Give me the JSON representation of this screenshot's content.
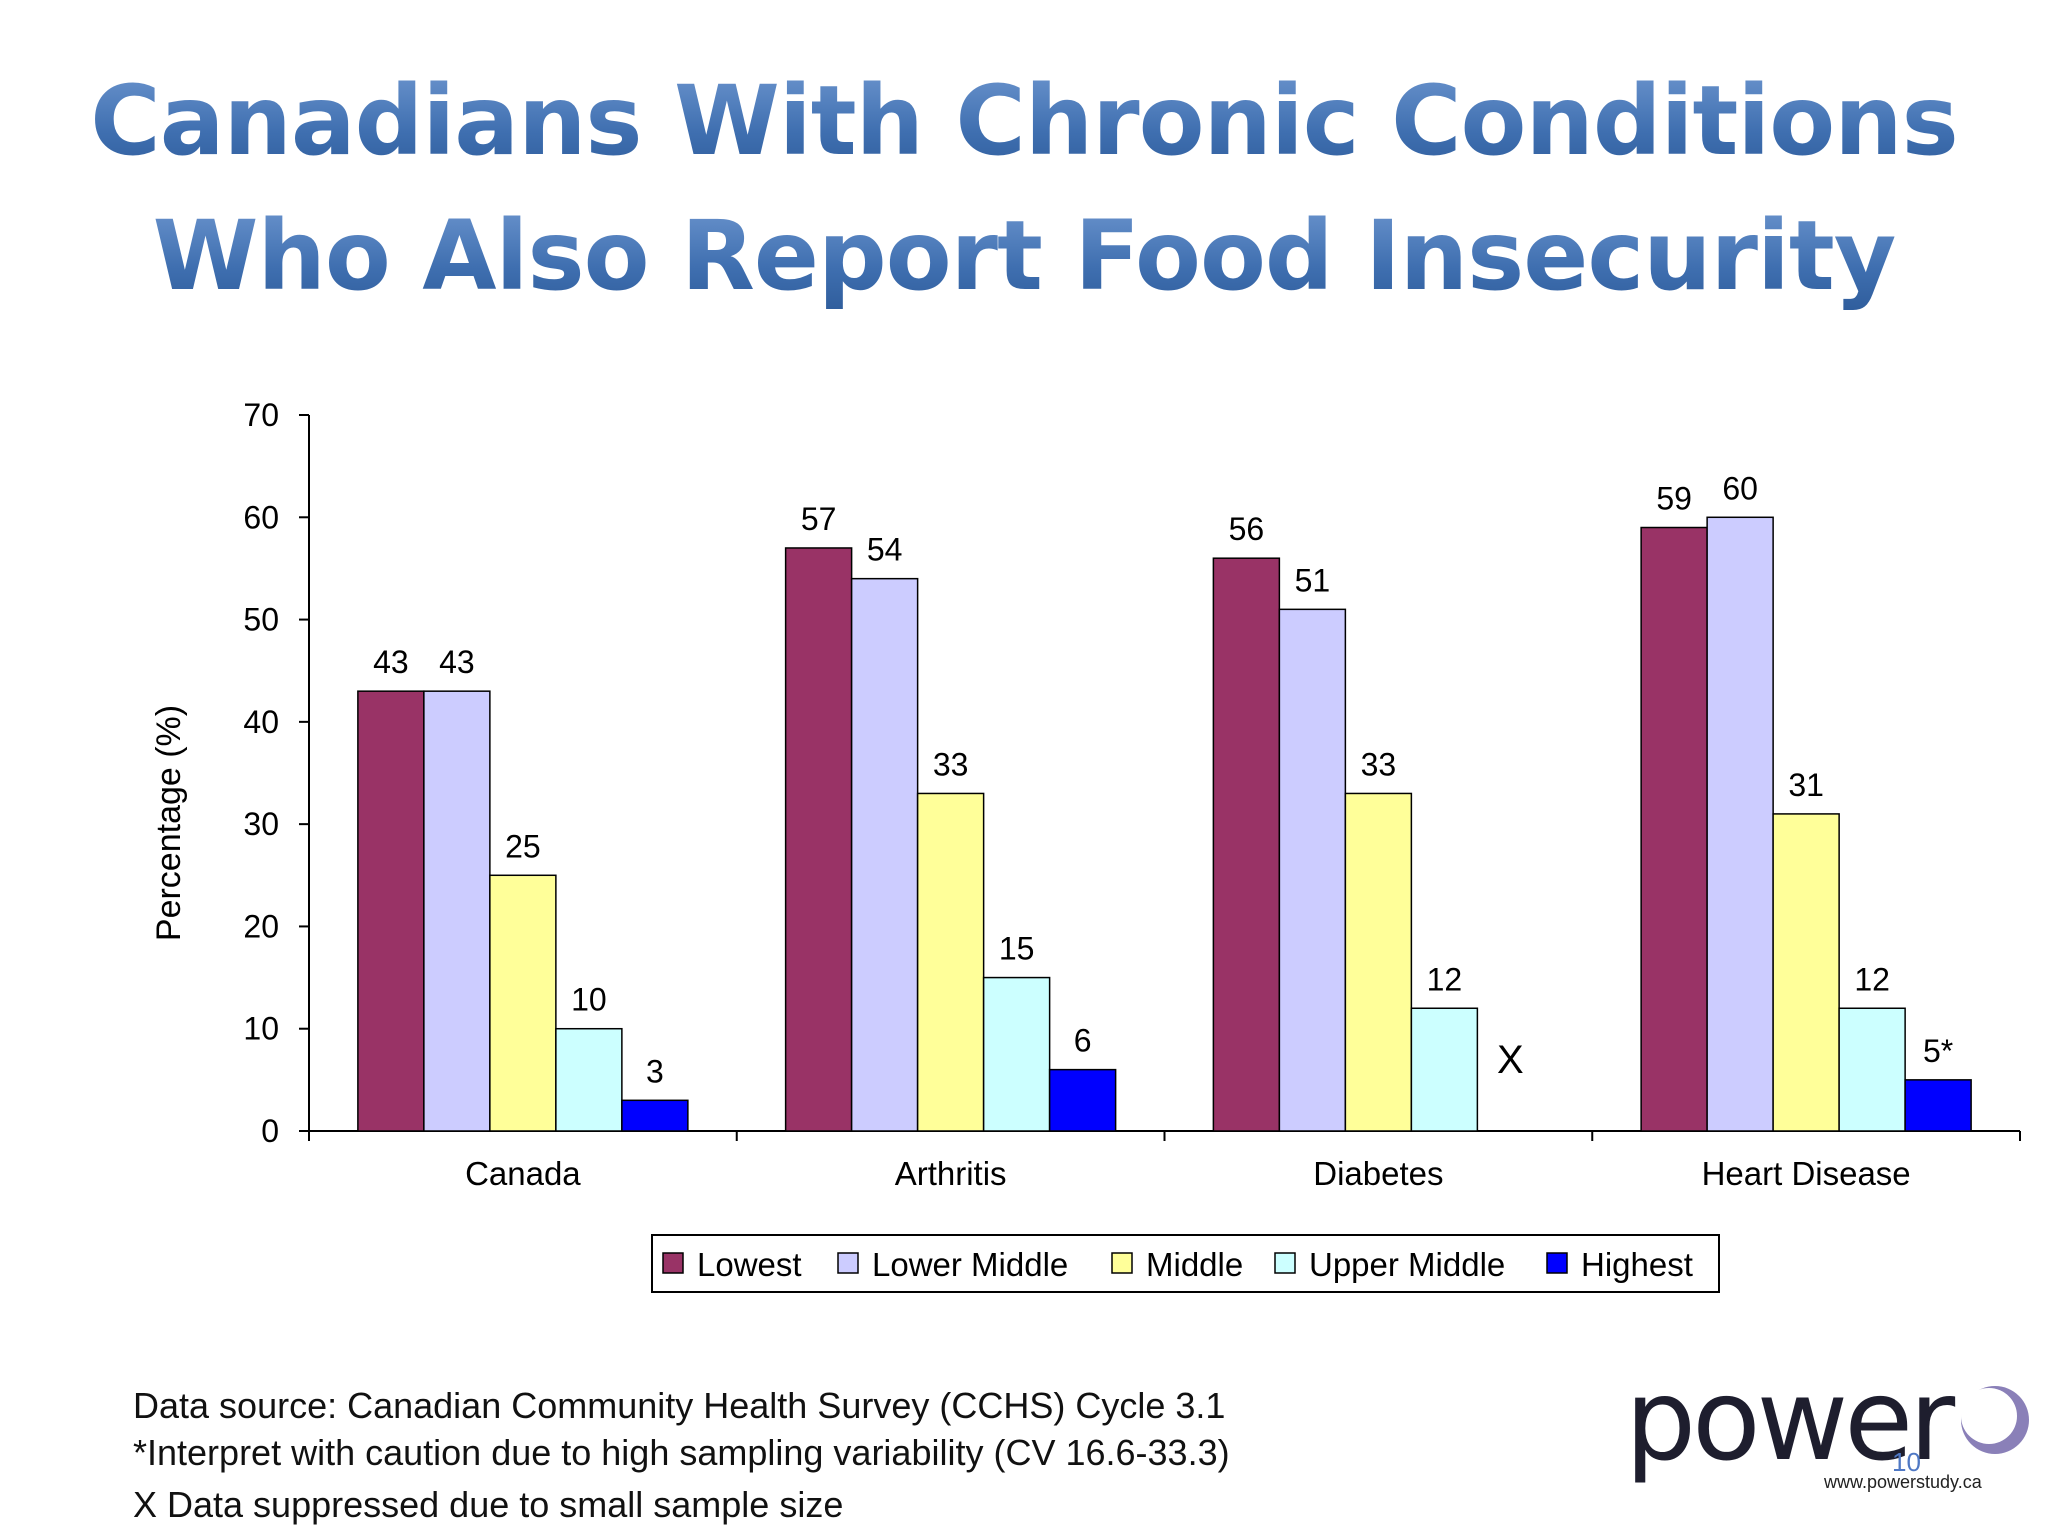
{
  "slide": {
    "title_line1": "Canadians With Chronic Conditions",
    "title_line2": "Who Also Report Food Insecurity",
    "footnotes": [
      "Data source: Canadian Community Health Survey (CCHS) Cycle 3.1",
      "*Interpret with caution due to high sampling variability (CV 16.6-33.3)",
      "X Data suppressed due to small sample size"
    ],
    "logo_text": "power",
    "logo_url": "www.powerstudy.ca",
    "page_number": "10"
  },
  "colors": {
    "title": "#3f6fb0",
    "lowest": "#993366",
    "lower_middle": "#ccccff",
    "middle": "#ffff99",
    "upper_middle": "#ccffff",
    "highest": "#0000ff",
    "page_number": "#4f78c4"
  },
  "chart_data": {
    "type": "bar",
    "title": "",
    "xlabel": "",
    "ylabel": "Percentage (%)",
    "ylim": [
      0,
      70
    ],
    "yticks": [
      0,
      10,
      20,
      30,
      40,
      50,
      60,
      70
    ],
    "grid": false,
    "legend_position": "bottom",
    "categories": [
      "Canada",
      "Arthritis",
      "Diabetes",
      "Heart Disease"
    ],
    "series": [
      {
        "name": "Lowest",
        "color": "#993366",
        "values": [
          43,
          57,
          56,
          59
        ],
        "labels": [
          "43",
          "57",
          "56",
          "59"
        ]
      },
      {
        "name": "Lower Middle",
        "color": "#ccccff",
        "values": [
          43,
          54,
          51,
          60
        ],
        "labels": [
          "43",
          "54",
          "51",
          "60"
        ]
      },
      {
        "name": "Middle",
        "color": "#ffff99",
        "values": [
          25,
          33,
          33,
          31
        ],
        "labels": [
          "25",
          "33",
          "33",
          "31"
        ]
      },
      {
        "name": "Upper Middle",
        "color": "#ccffff",
        "values": [
          10,
          15,
          12,
          12
        ],
        "labels": [
          "10",
          "15",
          "12",
          "12"
        ]
      },
      {
        "name": "Highest",
        "color": "#0000ff",
        "values": [
          3,
          6,
          null,
          5
        ],
        "labels": [
          "3",
          "6",
          "X",
          "5*"
        ]
      }
    ]
  }
}
